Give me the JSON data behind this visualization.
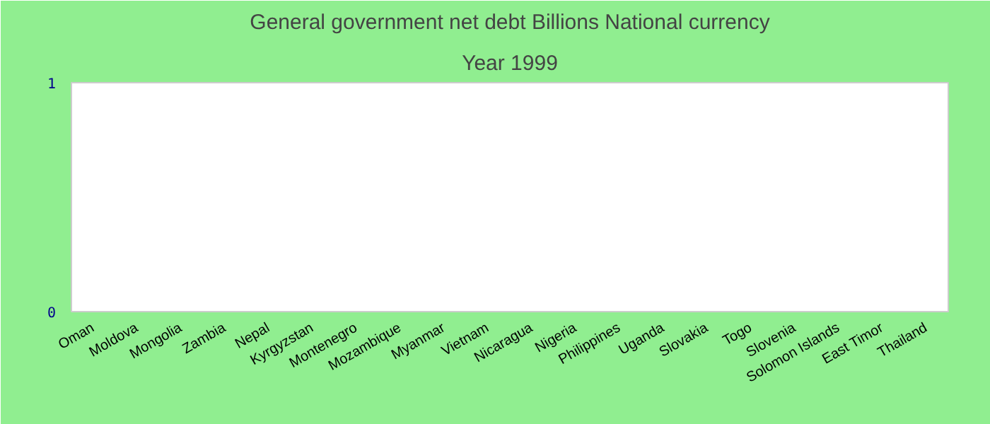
{
  "chart_data": {
    "type": "bar",
    "title": "General government net debt Billions National currency",
    "subtitle": "Year 1999",
    "categories": [
      "Oman",
      "Moldova",
      "Mongolia",
      "Zambia",
      "Nepal",
      "Kyrgyzstan",
      "Montenegro",
      "Mozambique",
      "Myanmar",
      "Vietnam",
      "Nicaragua",
      "Nigeria",
      "Philippines",
      "Uganda",
      "Slovakia",
      "Togo",
      "Slovenia",
      "Solomon Islands",
      "East Timor",
      "Thailand"
    ],
    "values": [
      null,
      null,
      null,
      null,
      null,
      null,
      null,
      null,
      null,
      null,
      null,
      null,
      null,
      null,
      null,
      null,
      null,
      null,
      null,
      null
    ],
    "ylim": [
      0,
      1
    ],
    "yticks": [
      0,
      1
    ],
    "grid": false
  }
}
